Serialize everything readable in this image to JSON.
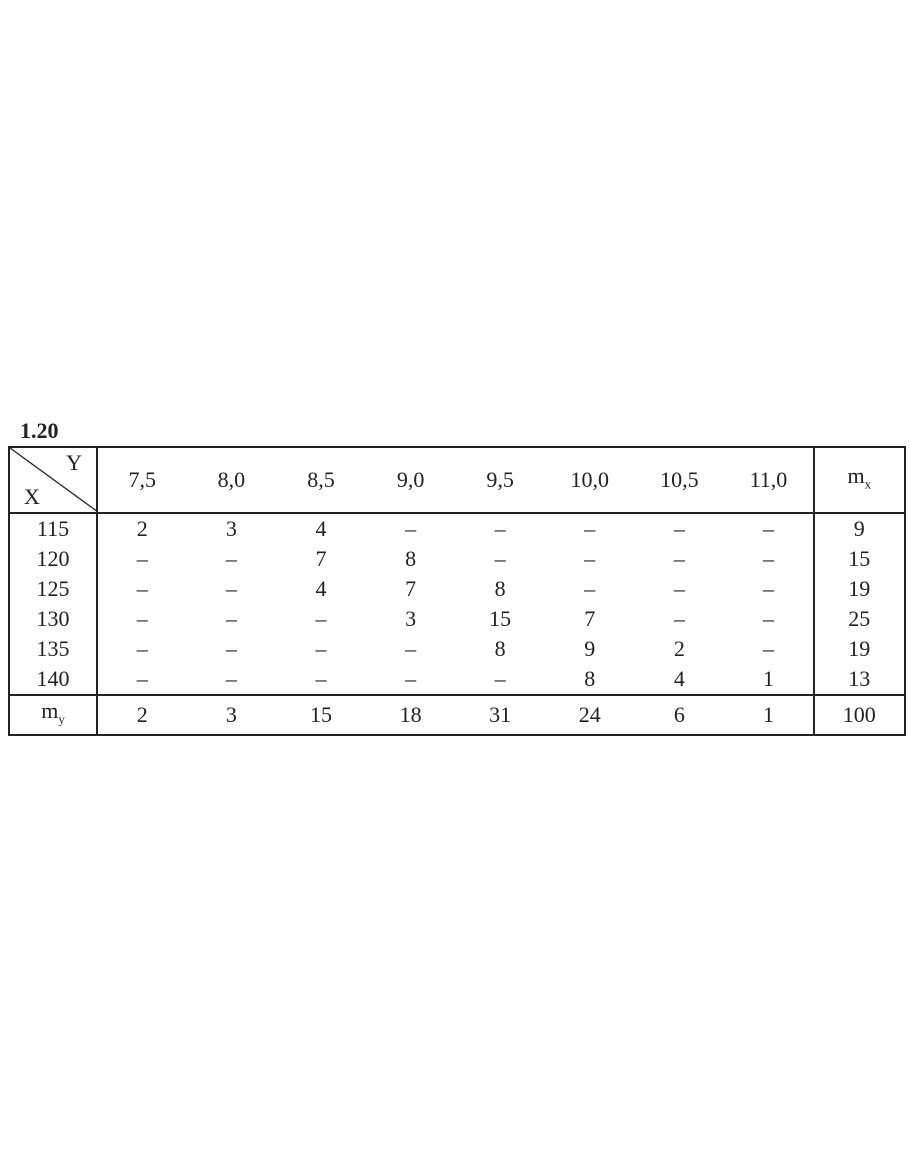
{
  "label": "1.20",
  "table": {
    "corner": {
      "y": "Y",
      "x": "X"
    },
    "y_values": [
      "7,5",
      "8,0",
      "8,5",
      "9,0",
      "9,5",
      "10,0",
      "10,5",
      "11,0"
    ],
    "mx_header": {
      "base": "m",
      "sub": "x"
    },
    "rows": [
      {
        "x": "115",
        "cells": [
          "2",
          "3",
          "4",
          "–",
          "–",
          "–",
          "–",
          "–"
        ],
        "mx": "9"
      },
      {
        "x": "120",
        "cells": [
          "–",
          "–",
          "7",
          "8",
          "–",
          "–",
          "–",
          "–"
        ],
        "mx": "15"
      },
      {
        "x": "125",
        "cells": [
          "–",
          "–",
          "4",
          "7",
          "8",
          "–",
          "–",
          "–"
        ],
        "mx": "19"
      },
      {
        "x": "130",
        "cells": [
          "–",
          "–",
          "–",
          "3",
          "15",
          "7",
          "–",
          "–"
        ],
        "mx": "25"
      },
      {
        "x": "135",
        "cells": [
          "–",
          "–",
          "–",
          "–",
          "8",
          "9",
          "2",
          "–"
        ],
        "mx": "19"
      },
      {
        "x": "140",
        "cells": [
          "–",
          "–",
          "–",
          "–",
          "–",
          "8",
          "4",
          "1"
        ],
        "mx": "13"
      }
    ],
    "totals": {
      "label": {
        "base": "m",
        "sub": "y"
      },
      "cells": [
        "2",
        "3",
        "15",
        "18",
        "31",
        "24",
        "6",
        "1"
      ],
      "total": "100"
    }
  }
}
